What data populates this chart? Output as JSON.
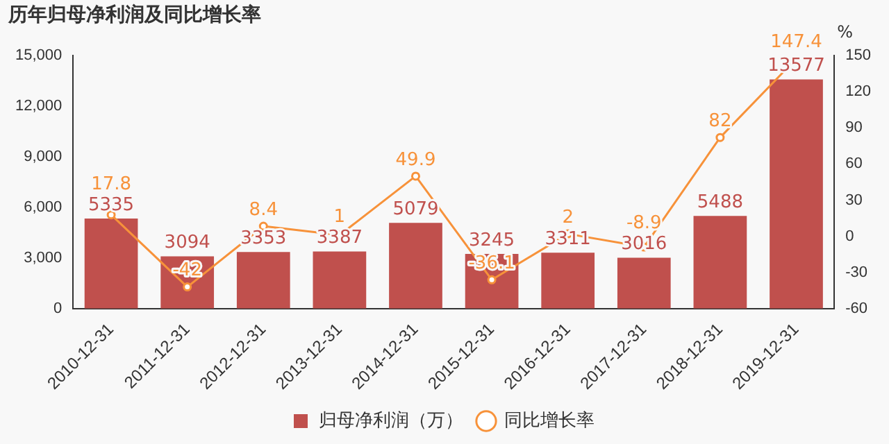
{
  "chart_data": {
    "type": "bar",
    "title": "历年归母净利润及同比增长率",
    "y2label": "%",
    "categories": [
      "2010-12-31",
      "2011-12-31",
      "2012-12-31",
      "2013-12-31",
      "2014-12-31",
      "2015-12-31",
      "2016-12-31",
      "2017-12-31",
      "2018-12-31",
      "2019-12-31"
    ],
    "series": [
      {
        "name": "归母净利润（万）",
        "color": "#c0504d",
        "values": [
          5335,
          3094,
          3353,
          3387,
          5079,
          3245,
          3311,
          3016,
          5488,
          13577
        ]
      },
      {
        "name": "同比增长率",
        "type": "line",
        "axis": "y2",
        "color": "#f7923a",
        "marker": "circle",
        "values": [
          17.8,
          -42,
          8.4,
          1,
          49.9,
          -36.1,
          2,
          -8.9,
          82,
          147.4
        ]
      }
    ],
    "ylim": [
      0,
      15000
    ],
    "yticks": [
      {
        "value": 0,
        "label": "0"
      },
      {
        "value": 3000,
        "label": "3,000"
      },
      {
        "value": 6000,
        "label": "6,000"
      },
      {
        "value": 9000,
        "label": "9,000"
      },
      {
        "value": 12000,
        "label": "12,000"
      },
      {
        "value": 15000,
        "label": "15,000"
      }
    ],
    "y2lim": [
      -60,
      150
    ],
    "y2ticks": [
      -60,
      -30,
      0,
      30,
      60,
      90,
      120,
      150
    ],
    "grid": false,
    "legend": "bottom",
    "data_labels": true
  }
}
